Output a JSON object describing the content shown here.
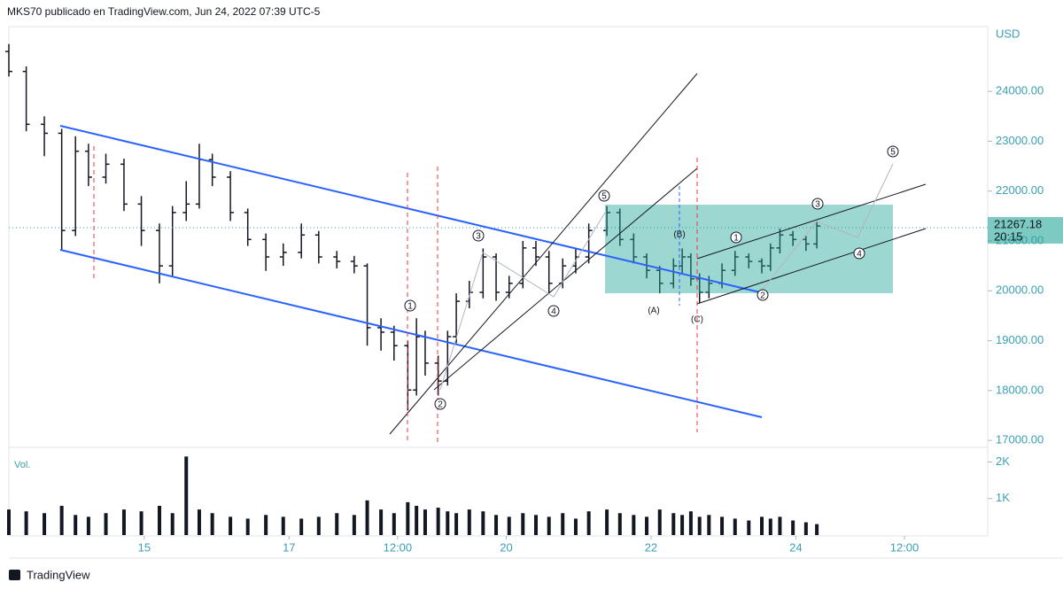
{
  "header": "MKS70 publicado en TradingView.com, Jun 24, 2022 07:39 UTC-5",
  "footer": "TradingView",
  "wave_labels": [
    "1",
    "2",
    "3",
    "4",
    "5",
    "(A)",
    "(B)",
    "(C)",
    "1",
    "2",
    "3",
    "4",
    "5"
  ],
  "chart_data": {
    "type": "ohlc",
    "currency": "USD",
    "color": "#131722",
    "x": [
      13.13,
      13.37,
      13.62,
      13.86,
      14.05,
      14.23,
      14.47,
      14.72,
      14.96,
      15.21,
      15.39,
      15.58,
      15.76,
      15.94,
      16.19,
      16.43,
      16.68,
      16.92,
      17.17,
      17.41,
      17.66,
      17.9,
      18.08,
      18.27,
      18.45,
      18.64,
      18.76,
      18.88,
      19.06,
      19.19,
      19.31,
      19.49,
      19.68,
      19.86,
      20.04,
      20.23,
      20.41,
      20.59,
      20.78,
      20.96,
      21.14,
      21.39,
      21.57,
      21.76,
      21.94,
      22.12,
      22.31,
      22.43,
      22.55,
      22.67,
      22.8,
      22.98,
      23.16,
      23.35,
      23.53,
      23.65,
      23.78,
      23.96,
      24.14,
      24.29
    ],
    "open": [
      24800,
      24400,
      23340,
      23160,
      21210,
      22800,
      22280,
      22540,
      21740,
      21210,
      20500,
      21570,
      21740,
      22630,
      22280,
      21570,
      21030,
      20680,
      20770,
      21120,
      20680,
      20590,
      20500,
      19260,
      19170,
      18900,
      18010,
      19080,
      18550,
      18190,
      19080,
      19790,
      19970,
      20680,
      19970,
      20150,
      20860,
      20680,
      20150,
      20500,
      20680,
      21210,
      21570,
      21030,
      20680,
      20410,
      20150,
      20500,
      20680,
      20240,
      19970,
      20150,
      20410,
      20680,
      20590,
      20500,
      20860,
      21120,
      21030,
      20940
    ],
    "high": [
      24950,
      24500,
      23500,
      23250,
      23100,
      22950,
      22750,
      22650,
      21900,
      21350,
      21700,
      22200,
      22950,
      22750,
      22400,
      21650,
      21150,
      20950,
      21350,
      21200,
      20800,
      20700,
      20550,
      19450,
      19300,
      19000,
      19450,
      19200,
      18700,
      19200,
      19950,
      20200,
      20850,
      20750,
      20300,
      21000,
      21000,
      20800,
      20650,
      20850,
      21350,
      21700,
      21650,
      21150,
      20750,
      20500,
      20650,
      20850,
      20750,
      20350,
      20300,
      20550,
      20800,
      20750,
      20650,
      20950,
      21250,
      21200,
      21100,
      21400
    ],
    "low": [
      24300,
      23200,
      22700,
      20800,
      21100,
      22100,
      22150,
      21600,
      20900,
      20150,
      20300,
      21400,
      21650,
      22100,
      21400,
      20900,
      20400,
      20500,
      20650,
      20550,
      20450,
      20350,
      18900,
      18800,
      18600,
      17600,
      17900,
      18300,
      17900,
      18100,
      18950,
      19650,
      19850,
      19800,
      19850,
      20050,
      20500,
      19950,
      20050,
      20350,
      20550,
      21100,
      20900,
      20550,
      20250,
      19950,
      20050,
      20350,
      20100,
      19750,
      19850,
      20050,
      20300,
      20450,
      20350,
      20400,
      20750,
      20900,
      20800,
      20850
    ],
    "close": [
      24400,
      23340,
      23160,
      21210,
      22800,
      22280,
      22540,
      21740,
      21210,
      20500,
      21570,
      21740,
      22630,
      22280,
      21570,
      21030,
      20680,
      20770,
      21120,
      20680,
      20590,
      20500,
      19260,
      19170,
      18900,
      18010,
      19080,
      18550,
      18190,
      19080,
      19790,
      19970,
      20680,
      19970,
      20150,
      20860,
      20680,
      20150,
      20500,
      20680,
      21210,
      21570,
      21030,
      20680,
      20410,
      20150,
      20500,
      20680,
      20240,
      19970,
      20150,
      20410,
      20680,
      20590,
      20500,
      20860,
      21120,
      21030,
      20940,
      21300
    ],
    "xlim": [
      13.13,
      26.65
    ],
    "xticks": [
      15,
      17,
      {
        "value": 18.5,
        "label": "12:00"
      },
      20,
      22,
      24,
      {
        "value": 25.5,
        "label": "12:00"
      }
    ],
    "ylim": [
      16860,
      25300
    ],
    "yticks": [
      {
        "value": 17000,
        "label": "17000.00"
      },
      {
        "value": 18000,
        "label": "18000.00"
      },
      {
        "value": 19000,
        "label": "19000.00"
      },
      {
        "value": 20000,
        "label": "20000.00"
      },
      {
        "value": 21000,
        "label": "21000.00"
      },
      {
        "value": 22000,
        "label": "22000.00"
      },
      {
        "value": 23000,
        "label": "23000.00"
      },
      {
        "value": 24000,
        "label": "24000.00"
      }
    ],
    "last_price": 21267.18,
    "countdown": "20:15",
    "last_price_color": "#26a69a",
    "volume": {
      "label": "Vol.",
      "color": "#131722",
      "values": [
        700,
        650,
        600,
        800,
        550,
        500,
        600,
        700,
        650,
        800,
        600,
        2150,
        700,
        600,
        500,
        450,
        550,
        500,
        450,
        500,
        600,
        550,
        950,
        700,
        600,
        900,
        800,
        700,
        750,
        650,
        600,
        700,
        650,
        550,
        500,
        600,
        550,
        500,
        600,
        450,
        650,
        700,
        600,
        550,
        500,
        700,
        600,
        550,
        650,
        500,
        550,
        500,
        450,
        400,
        500,
        450,
        500,
        400,
        350,
        300
      ],
      "ylim": [
        0,
        2400
      ],
      "yticks": [
        {
          "value": 1000,
          "label": "1K"
        },
        {
          "value": 2000,
          "label": "2K"
        }
      ]
    }
  }
}
